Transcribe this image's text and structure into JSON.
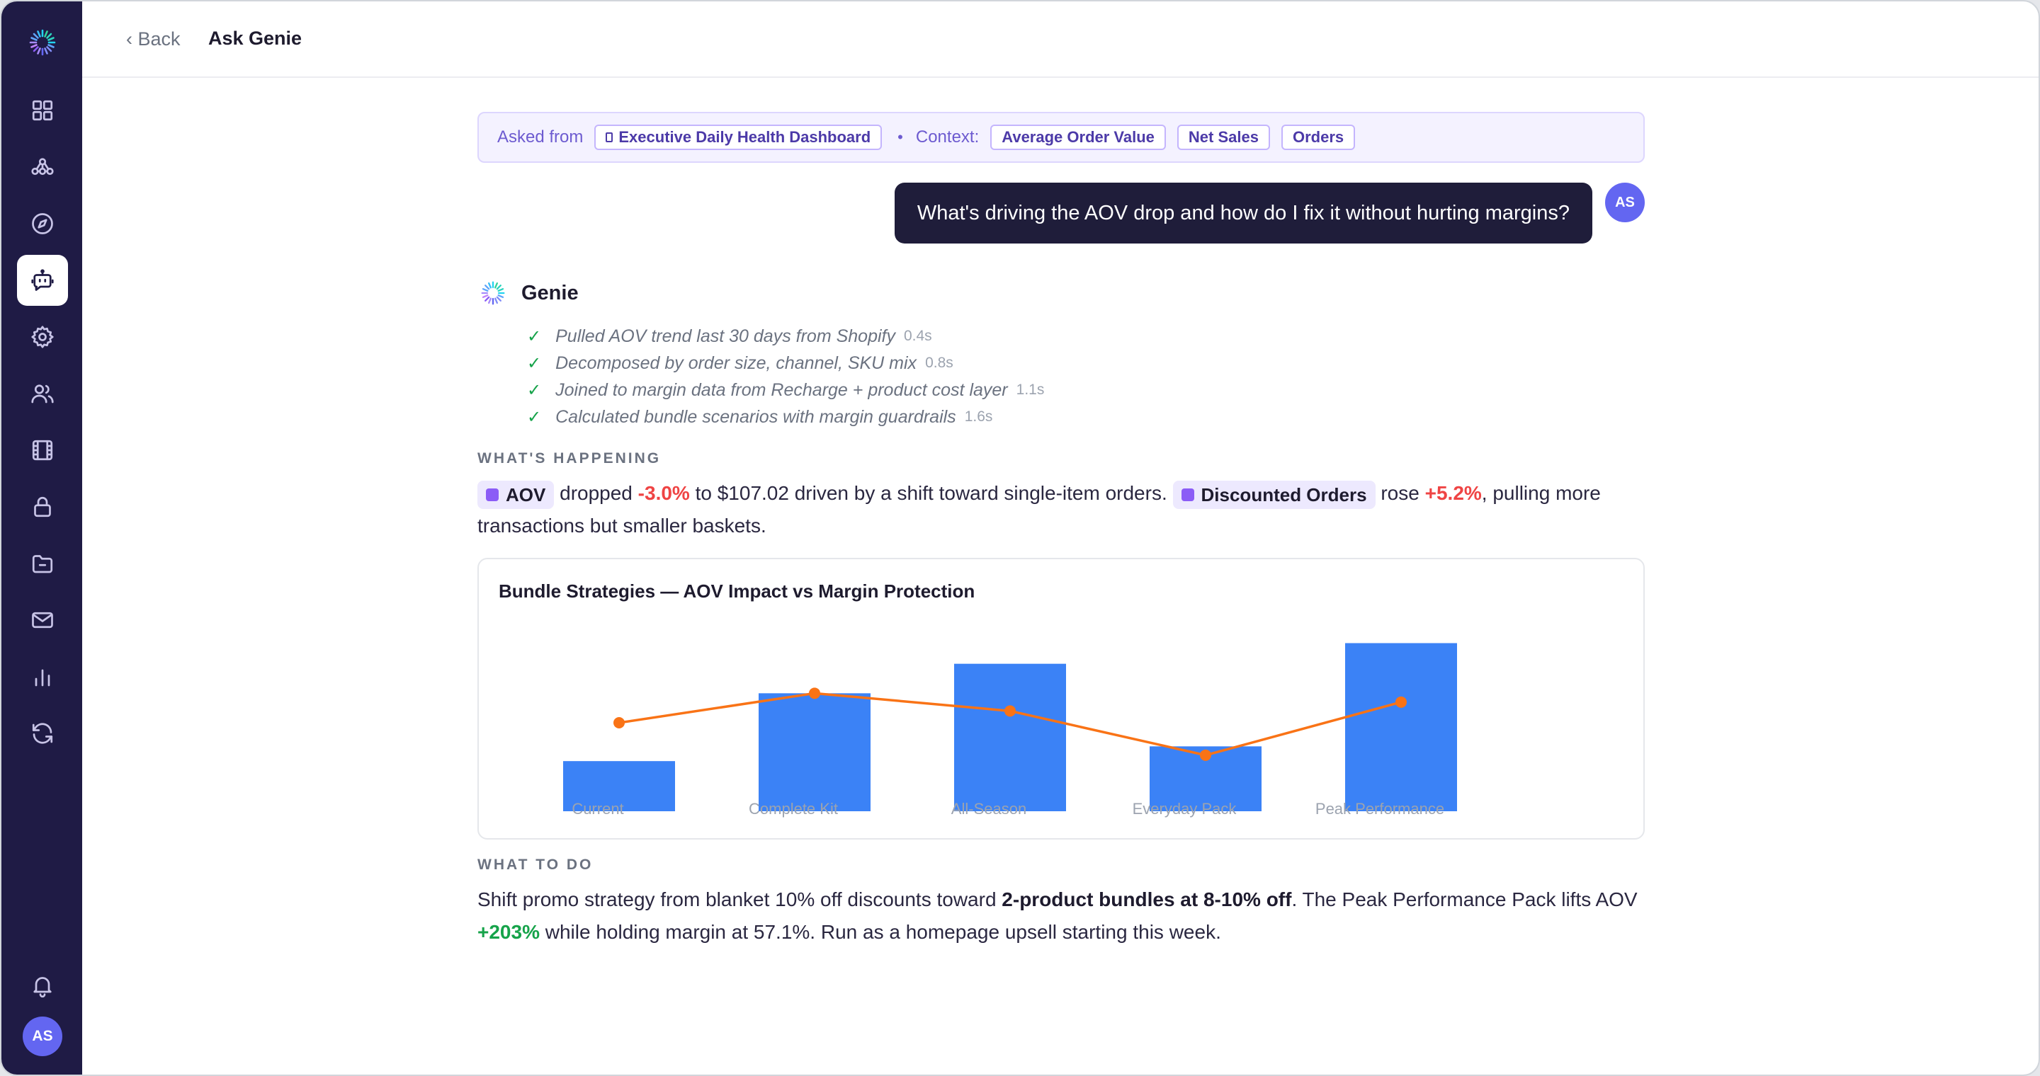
{
  "header": {
    "back_label": "‹ Back",
    "title": "Ask Genie"
  },
  "sidebar": {
    "items": [
      {
        "icon": "grid-icon"
      },
      {
        "icon": "network-icon"
      },
      {
        "icon": "compass-icon"
      },
      {
        "icon": "bot-chat-icon",
        "active": true
      },
      {
        "icon": "gear-icon"
      },
      {
        "icon": "users-icon"
      },
      {
        "icon": "film-icon"
      },
      {
        "icon": "lock-icon"
      },
      {
        "icon": "folder-icon"
      },
      {
        "icon": "mail-icon"
      },
      {
        "icon": "bar-chart-icon"
      },
      {
        "icon": "refresh-icon"
      }
    ],
    "bell_icon": "bell-icon",
    "avatar_initials": "AS"
  },
  "context": {
    "asked_from_label": "Asked from",
    "dashboard": "Executive Daily Health Dashboard",
    "context_label": "Context:",
    "metrics": [
      "Average Order Value",
      "Net Sales",
      "Orders"
    ]
  },
  "user_message": {
    "text": "What's driving the AOV drop and how do I fix it without hurting margins?",
    "avatar_initials": "AS"
  },
  "genie": {
    "name": "Genie",
    "steps": [
      {
        "text": "Pulled AOV trend last 30 days from Shopify",
        "time": "0.4s"
      },
      {
        "text": "Decomposed by order size, channel, SKU mix",
        "time": "0.8s"
      },
      {
        "text": "Joined to margin data from Recharge + product cost layer",
        "time": "1.1s"
      },
      {
        "text": "Calculated bundle scenarios with margin guardrails",
        "time": "1.6s"
      }
    ]
  },
  "whats_happening": {
    "label": "WHAT'S HAPPENING",
    "metric1": "AOV",
    "t1": " dropped ",
    "v1": "-3.0%",
    "t2": " to $107.02 driven by a shift toward single-item orders. ",
    "metric2": "Discounted Orders",
    "t3": " rose ",
    "v2": "+5.2%",
    "t4": ", pulling more transactions but smaller baskets."
  },
  "chart_data": {
    "type": "bar",
    "title": "Bundle Strategies — AOV Impact vs Margin Protection",
    "categories": [
      "Current",
      "Complete Kit",
      "All-Season",
      "Everyday Pack",
      "Peak Performance"
    ],
    "series": [
      {
        "type": "bar",
        "values": [
          17,
          40,
          50,
          22,
          57
        ],
        "color": "#3b82f6"
      },
      {
        "type": "line",
        "values": [
          30,
          40,
          34,
          19,
          37
        ],
        "color": "#f97316"
      }
    ],
    "ylim": [
      0,
      60
    ],
    "grid": false,
    "legend": "none"
  },
  "what_to_do": {
    "label": "WHAT TO DO",
    "t1": "Shift promo strategy from blanket 10% off discounts toward ",
    "b1": "2-product bundles at 8-10% off",
    "t2": ". The Peak Performance Pack lifts AOV ",
    "v1": "+203%",
    "t3": " while holding margin at 57.1%. Run as a homepage upsell starting this week."
  }
}
